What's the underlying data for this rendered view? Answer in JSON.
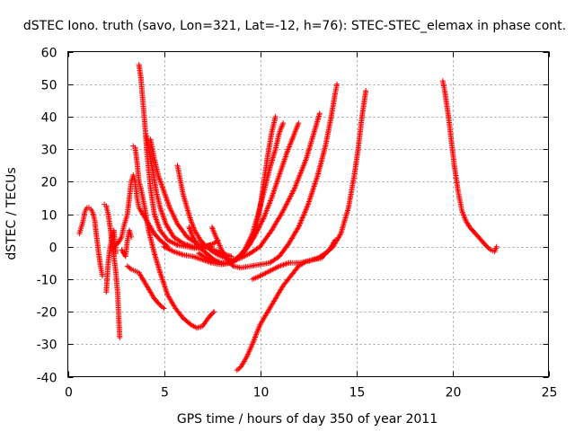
{
  "chart_data": {
    "type": "scatter",
    "title": "dSTEC Iono. truth (savo, Lon=321, Lat=-12, h=76): STEC-STEC_elemax in phase cont.",
    "xlabel": "GPS time / hours of day 350 of year 2011",
    "ylabel": "dSTEC  / TECUs",
    "xlim": [
      0,
      25
    ],
    "ylim": [
      -40,
      60
    ],
    "xticks": [
      0,
      5,
      10,
      15,
      20,
      25
    ],
    "yticks": [
      -40,
      -30,
      -20,
      -10,
      0,
      10,
      20,
      30,
      40,
      50,
      60
    ],
    "grid": true,
    "marker": "plus",
    "color": "#ff0000",
    "series": [
      {
        "values": [
          [
            0.6,
            4
          ],
          [
            0.7,
            6
          ],
          [
            0.8,
            8
          ],
          [
            0.9,
            11
          ],
          [
            1.0,
            12
          ],
          [
            1.1,
            12
          ],
          [
            1.2,
            11.5
          ],
          [
            1.3,
            10.5
          ],
          [
            1.4,
            8
          ],
          [
            1.5,
            3
          ],
          [
            1.6,
            -2
          ],
          [
            1.7,
            -6
          ],
          [
            1.8,
            -9
          ]
        ]
      },
      {
        "values": [
          [
            1.9,
            13
          ],
          [
            2.0,
            12.5
          ],
          [
            2.1,
            10
          ],
          [
            2.2,
            6
          ],
          [
            2.3,
            1
          ],
          [
            2.4,
            -3
          ],
          [
            2.5,
            -8
          ],
          [
            2.6,
            -15
          ],
          [
            2.65,
            -22
          ],
          [
            2.7,
            -28
          ]
        ]
      },
      {
        "values": [
          [
            2.0,
            -14
          ],
          [
            2.1,
            -5
          ],
          [
            2.2,
            0
          ],
          [
            2.3,
            3
          ],
          [
            2.4,
            5
          ],
          [
            2.5,
            -2
          ]
        ]
      },
      {
        "values": [
          [
            2.4,
            0
          ],
          [
            2.6,
            1
          ],
          [
            2.8,
            3
          ],
          [
            2.9,
            6
          ],
          [
            3.0,
            8
          ],
          [
            3.1,
            10
          ],
          [
            3.2,
            15
          ],
          [
            3.3,
            20
          ],
          [
            3.4,
            22
          ],
          [
            3.5,
            20
          ],
          [
            3.6,
            15
          ],
          [
            3.7,
            12
          ],
          [
            3.9,
            10
          ],
          [
            4.1,
            8
          ],
          [
            4.3,
            6
          ],
          [
            4.5,
            4
          ],
          [
            4.8,
            2
          ],
          [
            5.2,
            0
          ]
        ]
      },
      {
        "values": [
          [
            3.1,
            -6
          ],
          [
            3.3,
            -7
          ],
          [
            3.5,
            -7.5
          ],
          [
            3.7,
            -8
          ],
          [
            3.9,
            -10
          ],
          [
            4.1,
            -12
          ],
          [
            4.3,
            -14
          ],
          [
            4.5,
            -16
          ],
          [
            4.8,
            -18
          ],
          [
            5.0,
            -19
          ]
        ]
      },
      {
        "values": [
          [
            2.8,
            -1
          ],
          [
            3.0,
            -3
          ],
          [
            3.1,
            2
          ],
          [
            3.2,
            5
          ],
          [
            3.3,
            3
          ]
        ]
      },
      {
        "values": [
          [
            3.4,
            31
          ],
          [
            3.5,
            30.5
          ],
          [
            3.6,
            26
          ],
          [
            3.7,
            20
          ],
          [
            3.8,
            18
          ],
          [
            4.0,
            12
          ],
          [
            4.2,
            5
          ],
          [
            4.5,
            -2
          ],
          [
            4.8,
            -8
          ],
          [
            5.2,
            -15
          ],
          [
            5.6,
            -19
          ],
          [
            6.0,
            -22
          ],
          [
            6.4,
            -24
          ],
          [
            6.7,
            -25
          ],
          [
            7.0,
            -24.5
          ],
          [
            7.3,
            -22
          ],
          [
            7.6,
            -20
          ]
        ]
      },
      {
        "values": [
          [
            3.7,
            56
          ],
          [
            3.8,
            52
          ],
          [
            3.9,
            45
          ],
          [
            4.0,
            38
          ],
          [
            4.1,
            30
          ],
          [
            4.2,
            24
          ],
          [
            4.3,
            18
          ],
          [
            4.5,
            10
          ],
          [
            4.8,
            5
          ],
          [
            5.2,
            2
          ],
          [
            5.7,
            0.5
          ],
          [
            6.2,
            0
          ],
          [
            6.6,
            -0.5
          ],
          [
            7.0,
            0
          ],
          [
            7.4,
            0.5
          ]
        ]
      },
      {
        "values": [
          [
            4.1,
            34
          ],
          [
            4.2,
            30
          ],
          [
            4.4,
            24
          ],
          [
            4.6,
            17
          ],
          [
            4.8,
            12
          ],
          [
            5.1,
            7
          ],
          [
            5.5,
            3
          ],
          [
            6.0,
            1
          ],
          [
            6.5,
            0
          ],
          [
            7.0,
            -0.5
          ],
          [
            7.5,
            0
          ]
        ]
      },
      {
        "values": [
          [
            4.3,
            33
          ],
          [
            4.5,
            27
          ],
          [
            4.7,
            22
          ],
          [
            5.0,
            17
          ],
          [
            5.3,
            12
          ],
          [
            5.7,
            7
          ],
          [
            6.2,
            3
          ],
          [
            6.7,
            1
          ],
          [
            7.2,
            0
          ],
          [
            7.6,
            1
          ],
          [
            7.8,
            2
          ]
        ]
      },
      {
        "values": [
          [
            5.7,
            25
          ],
          [
            5.8,
            22
          ],
          [
            6.0,
            16
          ],
          [
            6.2,
            12
          ],
          [
            6.4,
            8
          ],
          [
            6.6,
            5
          ],
          [
            6.9,
            2
          ],
          [
            7.2,
            0
          ],
          [
            7.6,
            -1
          ],
          [
            8.0,
            -2
          ],
          [
            8.5,
            -3
          ]
        ]
      },
      {
        "values": [
          [
            5.0,
            0
          ],
          [
            5.5,
            -1.5
          ],
          [
            6.0,
            -2.5
          ],
          [
            6.5,
            -3
          ],
          [
            7.0,
            -4
          ],
          [
            7.5,
            -5
          ],
          [
            8.0,
            -5.5
          ],
          [
            8.5,
            -5
          ],
          [
            9.0,
            -3
          ],
          [
            9.5,
            1
          ],
          [
            9.8,
            6
          ],
          [
            10.0,
            12
          ],
          [
            10.2,
            20
          ],
          [
            10.4,
            28
          ],
          [
            10.6,
            35
          ],
          [
            10.8,
            40
          ]
        ]
      },
      {
        "values": [
          [
            6.3,
            6
          ],
          [
            6.5,
            3
          ],
          [
            6.8,
            0
          ],
          [
            7.2,
            -2
          ],
          [
            7.6,
            -4
          ],
          [
            8.0,
            -5
          ],
          [
            8.4,
            -5
          ],
          [
            8.8,
            -4
          ],
          [
            9.2,
            -1
          ],
          [
            9.6,
            4
          ],
          [
            9.9,
            10
          ],
          [
            10.2,
            17
          ],
          [
            10.5,
            24
          ],
          [
            10.8,
            30
          ],
          [
            11.0,
            35
          ],
          [
            11.2,
            38
          ]
        ]
      },
      {
        "values": [
          [
            6.8,
            -2
          ],
          [
            7.2,
            -3.5
          ],
          [
            7.6,
            -4.5
          ],
          [
            8.0,
            -5
          ],
          [
            8.4,
            -5
          ],
          [
            8.8,
            -3.5
          ],
          [
            9.2,
            -1
          ],
          [
            9.7,
            3
          ],
          [
            10.2,
            9
          ],
          [
            10.6,
            15
          ],
          [
            11.0,
            22
          ],
          [
            11.4,
            29
          ],
          [
            11.8,
            35
          ],
          [
            12.0,
            38
          ]
        ]
      },
      {
        "values": [
          [
            7.4,
            -1
          ],
          [
            7.8,
            -2.5
          ],
          [
            8.2,
            -3.5
          ],
          [
            8.6,
            -4
          ],
          [
            9.0,
            -3.5
          ],
          [
            9.5,
            -2
          ],
          [
            10.0,
            0
          ],
          [
            10.6,
            5
          ],
          [
            11.2,
            11
          ],
          [
            11.8,
            18
          ],
          [
            12.4,
            27
          ],
          [
            12.8,
            35
          ],
          [
            13.1,
            41
          ]
        ]
      },
      {
        "values": [
          [
            7.5,
            6
          ],
          [
            7.7,
            3
          ],
          [
            8.0,
            -1
          ],
          [
            8.3,
            -4
          ],
          [
            8.6,
            -6
          ],
          [
            9.0,
            -6.5
          ],
          [
            9.5,
            -6
          ],
          [
            10.0,
            -5.5
          ],
          [
            10.5,
            -5
          ],
          [
            11.0,
            -3
          ],
          [
            11.5,
            1
          ],
          [
            12.0,
            6
          ],
          [
            12.5,
            13
          ],
          [
            13.0,
            22
          ],
          [
            13.4,
            31
          ],
          [
            13.7,
            40
          ],
          [
            13.9,
            47
          ],
          [
            14.0,
            50
          ]
        ]
      },
      {
        "values": [
          [
            9.6,
            -10
          ],
          [
            10.0,
            -9
          ],
          [
            10.5,
            -7.5
          ],
          [
            11.0,
            -6
          ],
          [
            11.5,
            -5
          ],
          [
            12.0,
            -5
          ],
          [
            12.5,
            -4.5
          ],
          [
            13.0,
            -3.5
          ],
          [
            13.4,
            -2
          ],
          [
            13.8,
            0
          ],
          [
            14.2,
            4
          ],
          [
            14.6,
            12
          ],
          [
            14.9,
            22
          ],
          [
            15.1,
            30
          ],
          [
            15.3,
            40
          ],
          [
            15.5,
            48
          ]
        ]
      },
      {
        "values": [
          [
            8.8,
            -38
          ],
          [
            9.0,
            -37
          ],
          [
            9.3,
            -34
          ],
          [
            9.6,
            -30
          ],
          [
            10.0,
            -24
          ],
          [
            10.4,
            -20
          ],
          [
            10.8,
            -16
          ],
          [
            11.2,
            -12
          ],
          [
            11.6,
            -9
          ],
          [
            12.0,
            -6
          ],
          [
            12.4,
            -4.5
          ],
          [
            12.8,
            -4
          ],
          [
            13.2,
            -3.5
          ],
          [
            13.6,
            -1
          ],
          [
            13.9,
            2
          ]
        ]
      },
      {
        "values": [
          [
            19.5,
            51
          ],
          [
            19.6,
            48
          ],
          [
            19.7,
            44
          ],
          [
            19.8,
            40
          ],
          [
            19.9,
            35
          ],
          [
            20.0,
            30
          ],
          [
            20.1,
            25
          ],
          [
            20.2,
            21
          ],
          [
            20.3,
            17
          ],
          [
            20.4,
            14
          ],
          [
            20.5,
            11
          ],
          [
            20.7,
            8
          ],
          [
            20.9,
            6
          ],
          [
            21.2,
            4
          ],
          [
            21.5,
            2
          ],
          [
            21.8,
            0
          ],
          [
            22.0,
            -1
          ],
          [
            22.2,
            -1.5
          ],
          [
            22.3,
            0
          ]
        ]
      }
    ]
  }
}
